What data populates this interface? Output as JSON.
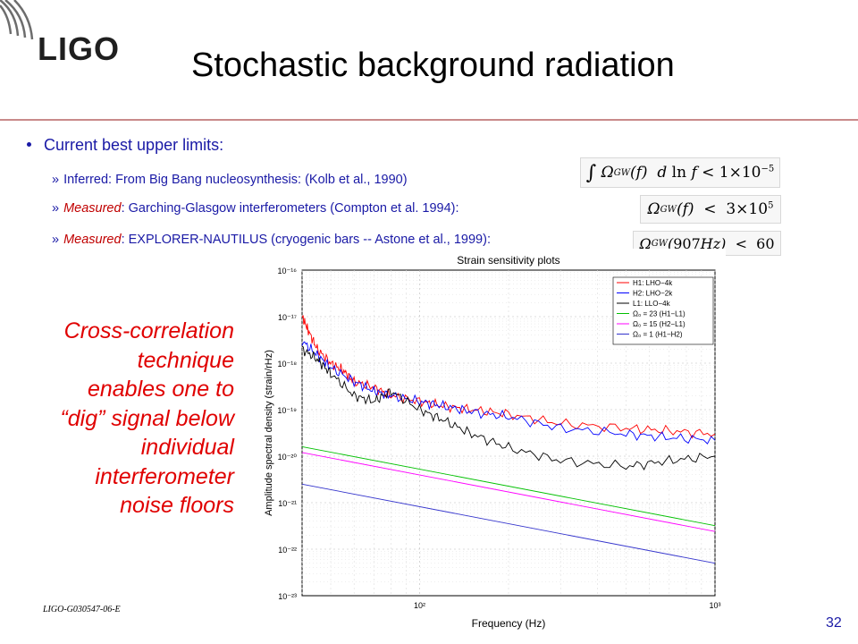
{
  "logo": {
    "text": "LIGO"
  },
  "title": "Stochastic background radiation",
  "bullets": {
    "main": "Current best upper limits:",
    "items": [
      {
        "chevron": "»",
        "prefix": "",
        "text": "Inferred: From Big Bang nucleosynthesis: (Kolb et al., 1990)"
      },
      {
        "chevron": "»",
        "prefix": "Measured",
        "text": ": Garching-Glasgow interferometers (Compton et al. 1994):"
      },
      {
        "chevron": "»",
        "prefix": "Measured",
        "text": ": EXPLORER-NAUTILUS (cryogenic bars -- Astone et al., 1999):"
      }
    ]
  },
  "equations": [
    "∫ Ω_GW(f) d ln f < 1×10^-5",
    "Ω_GW(f) < 3×10^5",
    "Ω_GW(907Hz) < 60"
  ],
  "callout": "Cross-correlation\ntechnique\nenables one to\n“dig” signal below\nindividual\ninterferometer\nnoise floors",
  "footer": {
    "doc_id": "LIGO-G030547-06-E",
    "page": "32"
  },
  "colors": {
    "accent": "#1a1aa6",
    "callout": "#e00000",
    "h1": "#ff0000",
    "h2": "#0000ff",
    "l1": "#000000",
    "omega23": "#00c000",
    "omega15": "#ff00ff",
    "omega1": "#3333cc"
  },
  "chart_data": {
    "type": "line",
    "title": "Strain sensitivity plots",
    "xlabel": "Frequency (Hz)",
    "ylabel": "Amplitude spectral density (strain/rHz)",
    "xscale": "log",
    "yscale": "log",
    "xlim": [
      40,
      1000
    ],
    "ylim": [
      1e-23,
      1e-16
    ],
    "x_ticks": [
      "10²",
      "10³"
    ],
    "y_ticks": [
      "10⁻²³",
      "10⁻²²",
      "10⁻²¹",
      "10⁻²⁰",
      "10⁻¹⁹",
      "10⁻¹⁸",
      "10⁻¹⁷",
      "10⁻¹⁶"
    ],
    "grid": true,
    "legend_position": "top-right",
    "series": [
      {
        "name": "H1: LHO−4k",
        "color": "#ff0000",
        "x": [
          40,
          42,
          45,
          50,
          55,
          60,
          70,
          80,
          100,
          120,
          150,
          200,
          300,
          500,
          700,
          1000
        ],
        "y": [
          1e-17,
          5e-18,
          2e-18,
          1e-18,
          7e-19,
          4e-19,
          3e-19,
          2e-19,
          1.5e-19,
          1.2e-19,
          1e-19,
          8e-20,
          5e-20,
          4e-20,
          3.5e-20,
          3e-20
        ]
      },
      {
        "name": "H2: LHO−2k",
        "color": "#0000ff",
        "x": [
          40,
          45,
          50,
          60,
          70,
          80,
          100,
          120,
          150,
          200,
          300,
          500,
          700,
          1000
        ],
        "y": [
          3e-18,
          1.5e-18,
          8e-19,
          4e-19,
          2.5e-19,
          2e-19,
          1.5e-19,
          1.2e-19,
          9e-20,
          7e-20,
          4e-20,
          3e-20,
          2.5e-20,
          2.2e-20
        ]
      },
      {
        "name": "L1: LLO−4k",
        "color": "#000000",
        "x": [
          40,
          45,
          50,
          60,
          70,
          80,
          100,
          120,
          150,
          200,
          300,
          500,
          700,
          1000
        ],
        "y": [
          2e-18,
          1.2e-18,
          6e-19,
          2e-19,
          1.5e-19,
          2.5e-19,
          1e-19,
          6e-20,
          3e-20,
          1.5e-20,
          8e-21,
          6e-21,
          8e-21,
          1e-20
        ]
      },
      {
        "name": "Ω₀ = 23 (H1−L1)",
        "color": "#00c000",
        "x": [
          40,
          1000
        ],
        "y": [
          1.6e-20,
          3.2e-22
        ]
      },
      {
        "name": "Ω₀ = 15 (H2−L1)",
        "color": "#ff00ff",
        "x": [
          40,
          1000
        ],
        "y": [
          1.2e-20,
          2.4e-22
        ]
      },
      {
        "name": "Ω₀ = 1 (H1−H2)",
        "color": "#3333cc",
        "x": [
          40,
          1000
        ],
        "y": [
          2.5e-21,
          5e-23
        ]
      }
    ]
  }
}
